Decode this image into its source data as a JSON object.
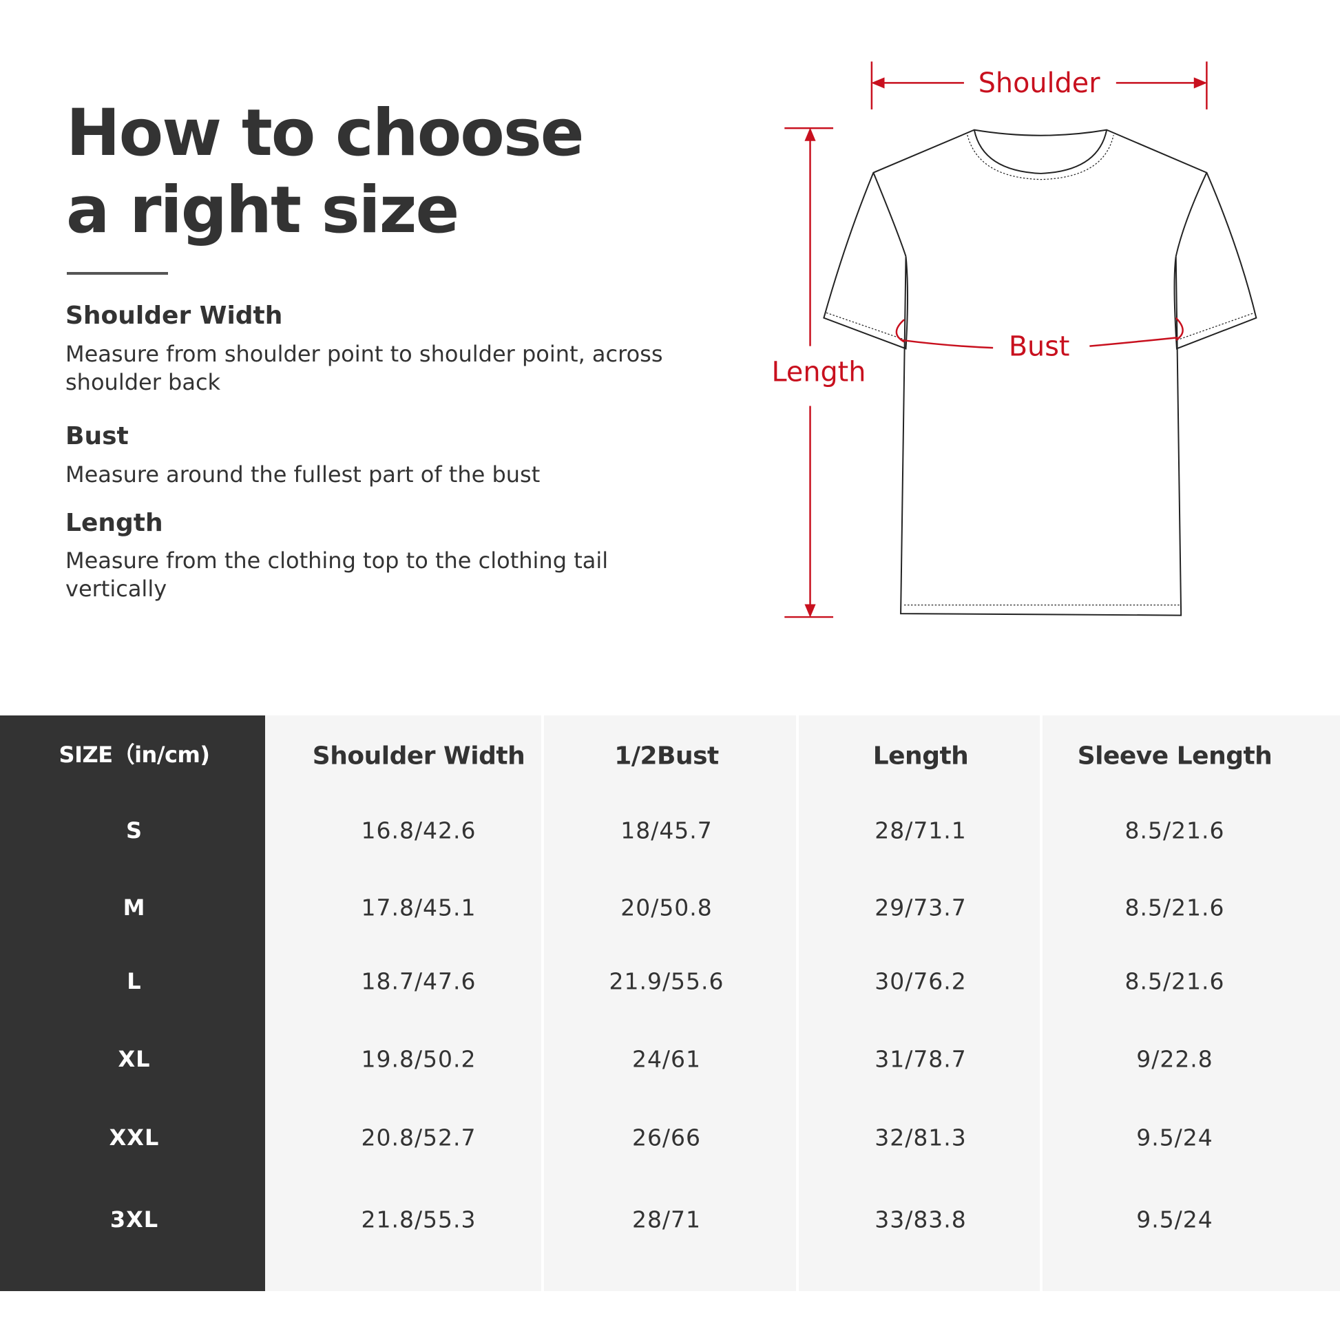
{
  "title": {
    "line1": "How to choose",
    "line2": "a right size"
  },
  "guide": [
    {
      "heading": "Shoulder Width",
      "desc": "Measure from shoulder point to shoulder point, across shoulder back"
    },
    {
      "heading": "Bust",
      "desc": "Measure around the fullest part of the bust"
    },
    {
      "heading": "Length",
      "desc": "Measure from the clothing top to the clothing tail vertically"
    }
  ],
  "diagram": {
    "shoulder": "Shoulder",
    "bust": "Bust",
    "length": "Length",
    "accent": "#c8101e"
  },
  "table": {
    "headers": [
      "SIZE（in/cm)",
      "Shoulder Width",
      "1/2Bust",
      "Length",
      "Sleeve Length"
    ],
    "rows": [
      [
        "S",
        "16.8/42.6",
        "18/45.7",
        "28/71.1",
        "8.5/21.6"
      ],
      [
        "M",
        "17.8/45.1",
        "20/50.8",
        "29/73.7",
        "8.5/21.6"
      ],
      [
        "L",
        "18.7/47.6",
        "21.9/55.6",
        "30/76.2",
        "8.5/21.6"
      ],
      [
        "XL",
        "19.8/50.2",
        "24/61",
        "31/78.7",
        "9/22.8"
      ],
      [
        "XXL",
        "20.8/52.7",
        "26/66",
        "32/81.3",
        "9.5/24"
      ],
      [
        "3XL",
        "21.8/55.3",
        "28/71",
        "33/83.8",
        "9.5/24"
      ]
    ]
  }
}
